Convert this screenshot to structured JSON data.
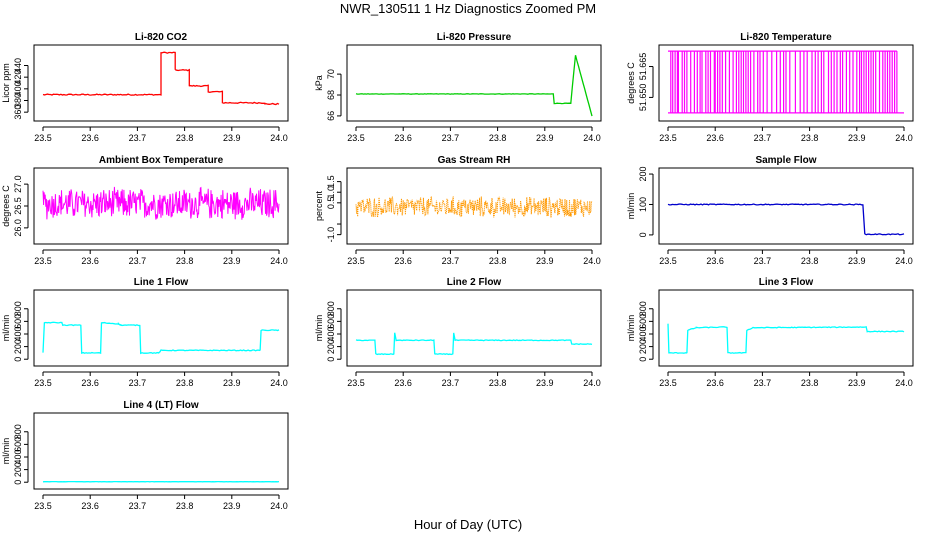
{
  "figure": {
    "title": "NWR_130511  1 Hz Diagnostics Zoomed PM",
    "xlabel": "Hour of Day (UTC)"
  },
  "chart_data": [
    {
      "type": "line",
      "title": "Li-820 CO2",
      "ylabel": "Licor ppm",
      "color": "#ff0000",
      "xlim": [
        23.5,
        24.0
      ],
      "xticks": [
        "23.5",
        "23.6",
        "23.7",
        "23.8",
        "23.9",
        "24.0"
      ],
      "ylim": [
        350,
        470
      ],
      "yticks": [
        360,
        380,
        400,
        420,
        440
      ],
      "noise": 1,
      "segments": [
        [
          23.5,
          23.75,
          390
        ],
        [
          23.75,
          23.78,
          462
        ],
        [
          23.78,
          23.81,
          432
        ],
        [
          23.81,
          23.85,
          405
        ],
        [
          23.85,
          23.88,
          395
        ],
        [
          23.88,
          23.97,
          376
        ],
        [
          23.97,
          24.0,
          374
        ]
      ]
    },
    {
      "type": "line",
      "title": "Li-820 Pressure",
      "ylabel": "kPa",
      "color": "#00cc00",
      "xlim": [
        23.5,
        24.0
      ],
      "xticks": [
        "23.5",
        "23.6",
        "23.7",
        "23.8",
        "23.9",
        "24.0"
      ],
      "ylim": [
        65.8,
        72.5
      ],
      "yticks": [
        66,
        68,
        70
      ],
      "noise": 0.02,
      "points": [
        [
          23.5,
          68.1
        ],
        [
          23.918,
          68.1
        ],
        [
          23.92,
          67.2
        ],
        [
          23.955,
          67.2
        ],
        [
          23.965,
          71.8
        ],
        [
          24.0,
          66.0
        ]
      ]
    },
    {
      "type": "spikes",
      "title": "Li-820 Temperature",
      "ylabel": "degrees C",
      "color": "#ff00ff",
      "xlim": [
        23.5,
        24.0
      ],
      "xticks": [
        "23.5",
        "23.6",
        "23.7",
        "23.8",
        "23.9",
        "24.0"
      ],
      "ylim": [
        51.64,
        51.674
      ],
      "yticks": [
        51.65,
        51.665
      ],
      "ytick_labels": [
        "51.650",
        "51.665"
      ],
      "base": 51.6425,
      "top": 51.6725,
      "spike_x": [
        23.506,
        23.51,
        23.515,
        23.52,
        23.522,
        23.53,
        23.535,
        23.54,
        23.548,
        23.556,
        23.562,
        23.568,
        23.572,
        23.58,
        23.585,
        23.59,
        23.598,
        23.6,
        23.605,
        23.61,
        23.615,
        23.622,
        23.63,
        23.638,
        23.645,
        23.65,
        23.655,
        23.66,
        23.665,
        23.67,
        23.675,
        23.682,
        23.69,
        23.695,
        23.702,
        23.71,
        23.72,
        23.73,
        23.738,
        23.745,
        23.75,
        23.758,
        23.77,
        23.78,
        23.788,
        23.795,
        23.805,
        23.812,
        23.818,
        23.825,
        23.83,
        23.84,
        23.846,
        23.852,
        23.858,
        23.865,
        23.87,
        23.878,
        23.885,
        23.892,
        23.9,
        23.906,
        23.91,
        23.915,
        23.92,
        23.925,
        23.93,
        23.935,
        23.94,
        23.948,
        23.955,
        23.96,
        23.965,
        23.97,
        23.975,
        23.98,
        23.985
      ]
    },
    {
      "type": "noise",
      "title": "Ambient Box Temperature",
      "ylabel": "degrees C",
      "color": "#ff00ff",
      "xlim": [
        23.5,
        24.0
      ],
      "xticks": [
        "23.5",
        "23.6",
        "23.7",
        "23.8",
        "23.9",
        "24.0"
      ],
      "ylim": [
        25.7,
        27.3
      ],
      "yticks": [
        26.0,
        26.5,
        27.0
      ],
      "ytick_labels": [
        "26.0",
        "26.5",
        "27.0"
      ],
      "mean": 26.55,
      "amplitude": 0.4
    },
    {
      "type": "noise",
      "title": "Gas Stream RH",
      "ylabel": "percent",
      "color": "#ff9900",
      "style": "dotted",
      "xlim": [
        23.5,
        24.0
      ],
      "xticks": [
        "23.5",
        "23.6",
        "23.7",
        "23.8",
        "23.9",
        "24.0"
      ],
      "ylim": [
        -1.3,
        2.0
      ],
      "yticks": [
        -1.0,
        -0.5,
        0.5,
        1.0,
        1.5
      ],
      "ytick_labels": [
        "-1.0",
        "",
        "0.5",
        "1.0",
        "1.5"
      ],
      "mean": 0.3,
      "amplitude": 0.55
    },
    {
      "type": "line",
      "title": "Sample Flow",
      "ylabel": "ml/min",
      "color": "#0000cc",
      "xlim": [
        23.5,
        24.0
      ],
      "xticks": [
        "23.5",
        "23.6",
        "23.7",
        "23.8",
        "23.9",
        "24.0"
      ],
      "ylim": [
        -20,
        210
      ],
      "yticks": [
        0,
        100,
        200
      ],
      "noise": 1.5,
      "points": [
        [
          23.5,
          100
        ],
        [
          23.913,
          100
        ],
        [
          23.917,
          2
        ],
        [
          24.0,
          2
        ]
      ]
    },
    {
      "type": "line",
      "title": "Line 1 Flow",
      "ylabel": "ml/min",
      "color": "#00ffff",
      "xlim": [
        23.5,
        24.0
      ],
      "xticks": [
        "23.5",
        "23.6",
        "23.7",
        "23.8",
        "23.9",
        "24.0"
      ],
      "ylim": [
        -60,
        1050
      ],
      "yticks": [
        0,
        200,
        400,
        600,
        800
      ],
      "noise": 6,
      "points": [
        [
          23.5,
          100
        ],
        [
          23.503,
          580
        ],
        [
          23.54,
          580
        ],
        [
          23.542,
          540
        ],
        [
          23.58,
          540
        ],
        [
          23.582,
          100
        ],
        [
          23.622,
          100
        ],
        [
          23.624,
          580
        ],
        [
          23.66,
          560
        ],
        [
          23.665,
          540
        ],
        [
          23.705,
          540
        ],
        [
          23.707,
          100
        ],
        [
          23.745,
          100
        ],
        [
          23.75,
          140
        ],
        [
          23.96,
          140
        ],
        [
          23.962,
          460
        ],
        [
          24.0,
          460
        ]
      ]
    },
    {
      "type": "line",
      "title": "Line 2 Flow",
      "ylabel": "ml/min",
      "color": "#00ffff",
      "xlim": [
        23.5,
        24.0
      ],
      "xticks": [
        "23.5",
        "23.6",
        "23.7",
        "23.8",
        "23.9",
        "24.0"
      ],
      "ylim": [
        -60,
        1050
      ],
      "yticks": [
        0,
        200,
        400,
        600,
        800
      ],
      "noise": 6,
      "points": [
        [
          23.5,
          300
        ],
        [
          23.54,
          300
        ],
        [
          23.542,
          80
        ],
        [
          23.58,
          80
        ],
        [
          23.582,
          420
        ],
        [
          23.585,
          300
        ],
        [
          23.665,
          300
        ],
        [
          23.667,
          80
        ],
        [
          23.705,
          80
        ],
        [
          23.707,
          420
        ],
        [
          23.71,
          300
        ],
        [
          23.955,
          300
        ],
        [
          23.957,
          240
        ],
        [
          24.0,
          240
        ]
      ]
    },
    {
      "type": "line",
      "title": "Line 3 Flow",
      "ylabel": "ml/min",
      "color": "#00ffff",
      "xlim": [
        23.5,
        24.0
      ],
      "xticks": [
        "23.5",
        "23.6",
        "23.7",
        "23.8",
        "23.9",
        "24.0"
      ],
      "ylim": [
        -60,
        1050
      ],
      "yticks": [
        0,
        200,
        400,
        600,
        800
      ],
      "noise": 6,
      "points": [
        [
          23.5,
          560
        ],
        [
          23.502,
          100
        ],
        [
          23.54,
          100
        ],
        [
          23.542,
          460
        ],
        [
          23.56,
          500
        ],
        [
          23.625,
          510
        ],
        [
          23.627,
          100
        ],
        [
          23.665,
          100
        ],
        [
          23.667,
          460
        ],
        [
          23.68,
          500
        ],
        [
          23.92,
          510
        ],
        [
          23.922,
          440
        ],
        [
          24.0,
          440
        ]
      ]
    },
    {
      "type": "line",
      "title": "Line 4 (LT) Flow",
      "ylabel": "ml/min",
      "color": "#00ffff",
      "xlim": [
        23.5,
        24.0
      ],
      "xticks": [
        "23.5",
        "23.6",
        "23.7",
        "23.8",
        "23.9",
        "24.0"
      ],
      "ylim": [
        -60,
        1050
      ],
      "yticks": [
        0,
        200,
        400,
        600,
        800
      ],
      "noise": 2,
      "points": [
        [
          23.5,
          8
        ],
        [
          24.0,
          8
        ]
      ]
    }
  ]
}
